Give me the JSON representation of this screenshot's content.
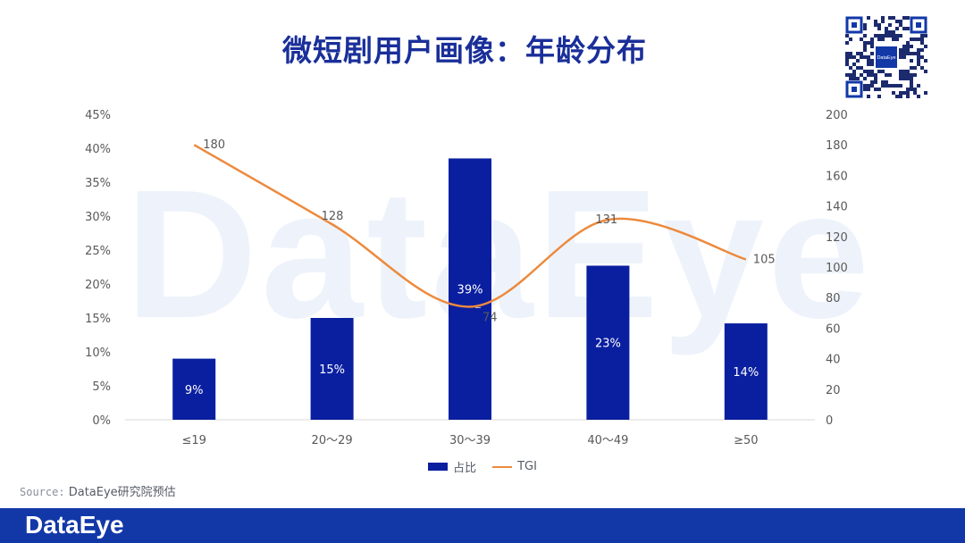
{
  "title": "微短剧用户画像：年龄分布",
  "source_label": "Source:",
  "source_text": "DataEye研究院预估",
  "footer_logo": "DataEye",
  "watermark": "DataEye",
  "qr_center_label": "DataEye",
  "colors": {
    "title": "#1a2f99",
    "bar": "#0a1fa0",
    "line": "#ec8a3e",
    "footer": "#1238a8"
  },
  "chart_data": {
    "type": "bar",
    "categories": [
      "≤19",
      "20～29",
      "30～39",
      "40～49",
      "≥50"
    ],
    "series": [
      {
        "name": "占比",
        "type": "bar",
        "axis": "left",
        "values": [
          9,
          15,
          38.5,
          22.7,
          14.2
        ],
        "labels": [
          "9%",
          "15%",
          "39%",
          "23%",
          "14%"
        ]
      },
      {
        "name": "TGI",
        "type": "line",
        "axis": "right",
        "values": [
          180,
          128,
          74,
          131,
          105
        ],
        "labels": [
          "180",
          "128",
          "74",
          "131",
          "105"
        ]
      }
    ],
    "y_left": {
      "ylim": [
        0,
        45
      ],
      "ticks": [
        "0%",
        "5%",
        "10%",
        "15%",
        "20%",
        "25%",
        "30%",
        "35%",
        "40%",
        "45%"
      ]
    },
    "y_right": {
      "ylim": [
        0,
        200
      ],
      "ticks": [
        "0",
        "20",
        "40",
        "60",
        "80",
        "100",
        "120",
        "140",
        "160",
        "180",
        "200"
      ]
    },
    "grid": false,
    "legend": "bottom-center"
  }
}
